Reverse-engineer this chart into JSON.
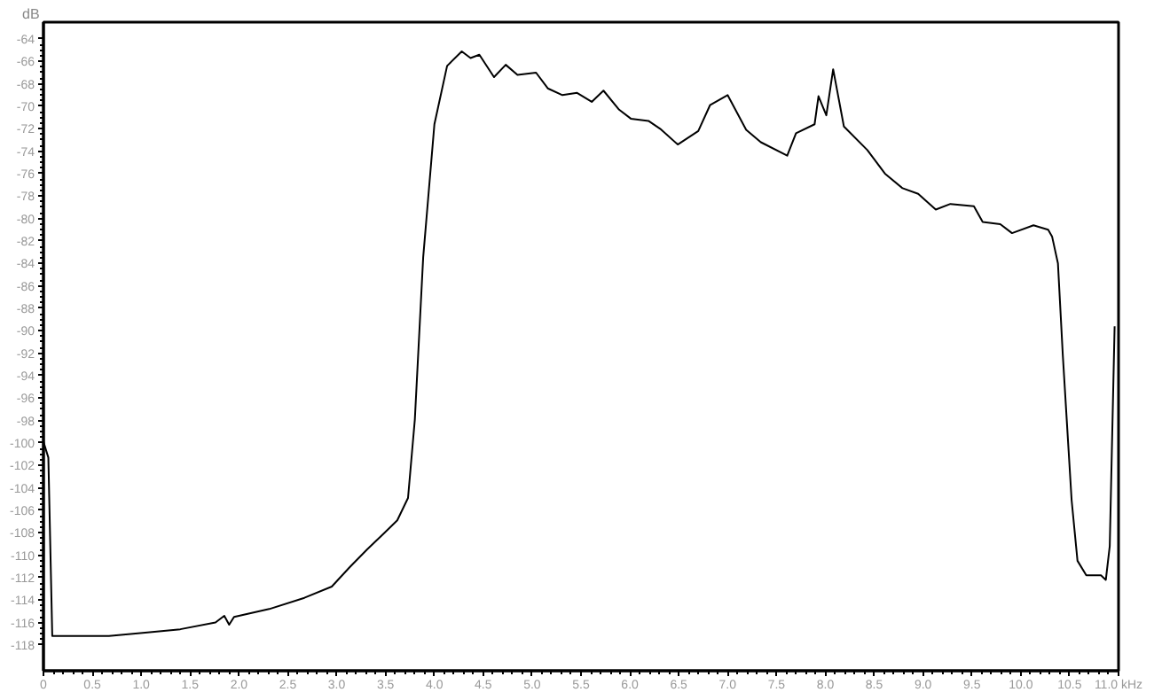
{
  "chart_data": {
    "type": "line",
    "ylabel": "dB",
    "x": [
      0,
      0.05,
      0.09,
      0.31,
      0.67,
      1.04,
      1.4,
      1.76,
      1.85,
      1.9,
      1.95,
      2.31,
      2.67,
      2.95,
      3.13,
      3.31,
      3.49,
      3.62,
      3.73,
      3.8,
      3.885,
      4.0,
      4.13,
      4.28,
      4.37,
      4.46,
      4.61,
      4.73,
      4.85,
      5.04,
      5.16,
      5.31,
      5.46,
      5.61,
      5.73,
      5.89,
      6.01,
      6.19,
      6.31,
      6.49,
      6.7,
      6.82,
      7.0,
      7.19,
      7.34,
      7.61,
      7.7,
      7.89,
      7.93,
      8.01,
      8.08,
      8.19,
      8.43,
      8.61,
      8.79,
      8.95,
      9.13,
      9.28,
      9.52,
      9.61,
      9.79,
      9.91,
      10.13,
      10.28,
      10.32,
      10.38,
      10.43,
      10.52,
      10.58,
      10.67,
      10.82,
      10.87,
      10.91,
      10.96
    ],
    "series": [
      {
        "color": "#000000",
        "values": [
          -99.9,
          -101.3,
          -117.2,
          -117.2,
          -117.2,
          -116.9,
          -116.6,
          -116.0,
          -115.4,
          -116.2,
          -115.5,
          -114.8,
          -113.8,
          -112.8,
          -111.1,
          -109.5,
          -108.0,
          -106.9,
          -104.9,
          -97.9,
          -83.5,
          -71.6,
          -66.4,
          -65.1,
          -65.7,
          -65.4,
          -67.4,
          -66.3,
          -67.2,
          -67.0,
          -68.4,
          -69.0,
          -68.8,
          -69.6,
          -68.6,
          -70.3,
          -71.1,
          -71.3,
          -72.0,
          -73.4,
          -72.2,
          -69.9,
          -69.0,
          -72.1,
          -73.2,
          -74.4,
          -72.4,
          -71.6,
          -69.1,
          -70.8,
          -66.7,
          -71.8,
          -73.9,
          -76.0,
          -77.3,
          -77.8,
          -79.2,
          -78.7,
          -78.9,
          -80.3,
          -80.5,
          -81.3,
          -80.6,
          -81.0,
          -81.6,
          -84.0,
          -92.2,
          -105.1,
          -110.5,
          -111.8,
          -111.8,
          -112.2,
          -109.2,
          -89.6
        ]
      }
    ],
    "xlim": [
      0,
      11.0
    ],
    "ylim": [
      -120.3,
      -62.5
    ],
    "xticks": [
      {
        "value": 0,
        "label": "0"
      },
      0.5,
      {
        "value": 1,
        "label": "1.0"
      },
      1.5,
      {
        "value": 2,
        "label": "2.0"
      },
      2.5,
      {
        "value": 3,
        "label": "3.0"
      },
      3.5,
      {
        "value": 4,
        "label": "4.0"
      },
      4.5,
      {
        "value": 5,
        "label": "5.0"
      },
      5.5,
      {
        "value": 6,
        "label": "6.0"
      },
      6.5,
      {
        "value": 7,
        "label": "7.0"
      },
      7.5,
      {
        "value": 8,
        "label": "8.0"
      },
      8.5,
      {
        "value": 9,
        "label": "9.0"
      },
      9.5,
      {
        "value": 10,
        "label": "10.0"
      },
      10.5,
      {
        "value": 11,
        "label": "11.0 kHz"
      }
    ],
    "yticks": [
      -118,
      -116,
      -114,
      -112,
      -110,
      -108,
      -106,
      -104,
      -102,
      -100,
      -98,
      -96,
      -94,
      -92,
      -90,
      -88,
      -86,
      -84,
      -82,
      -80,
      -78,
      -76,
      -74,
      -72,
      -70,
      -68,
      -66,
      -64
    ],
    "grid": false
  }
}
